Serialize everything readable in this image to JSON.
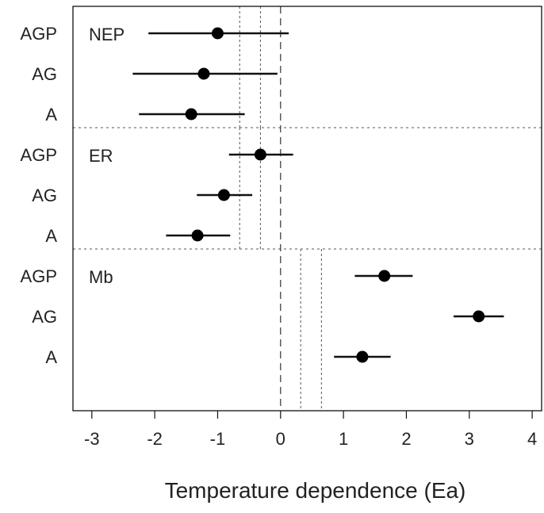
{
  "chart_data": {
    "type": "scatter",
    "subtype": "forest-plot-with-error-bars",
    "title": "",
    "xlabel": "Temperature dependence (Ea)",
    "ylabel": "",
    "xlim": [
      -3.3,
      4.15
    ],
    "xticks": [
      -3,
      -2,
      -1,
      0,
      1,
      2,
      3,
      4
    ],
    "xtick_labels": [
      "-3",
      "-2",
      "-1",
      "0",
      "1",
      "2",
      "3",
      "4"
    ],
    "grid": false,
    "zero_line": {
      "x": 0,
      "style": "dashed"
    },
    "panels": [
      {
        "name": "NEP",
        "reference_lines": [
          -0.65,
          -0.32
        ],
        "rows": [
          {
            "label": "AGP",
            "estimate": -1.0,
            "lower": -2.1,
            "upper": 0.13
          },
          {
            "label": "AG",
            "estimate": -1.22,
            "lower": -2.35,
            "upper": -0.05
          },
          {
            "label": "A",
            "estimate": -1.42,
            "lower": -2.25,
            "upper": -0.57
          }
        ]
      },
      {
        "name": "ER",
        "reference_lines": [
          -0.65,
          -0.32
        ],
        "rows": [
          {
            "label": "AGP",
            "estimate": -0.32,
            "lower": -0.82,
            "upper": 0.2
          },
          {
            "label": "AG",
            "estimate": -0.9,
            "lower": -1.33,
            "upper": -0.45
          },
          {
            "label": "A",
            "estimate": -1.32,
            "lower": -1.82,
            "upper": -0.8
          }
        ]
      },
      {
        "name": "Mb",
        "reference_lines": [
          0.32,
          0.65
        ],
        "rows": [
          {
            "label": "AGP",
            "estimate": 1.65,
            "lower": 1.18,
            "upper": 2.1
          },
          {
            "label": "AG",
            "estimate": 3.15,
            "lower": 2.75,
            "upper": 3.55
          },
          {
            "label": "A",
            "estimate": 1.3,
            "lower": 0.85,
            "upper": 1.75
          }
        ]
      }
    ]
  }
}
